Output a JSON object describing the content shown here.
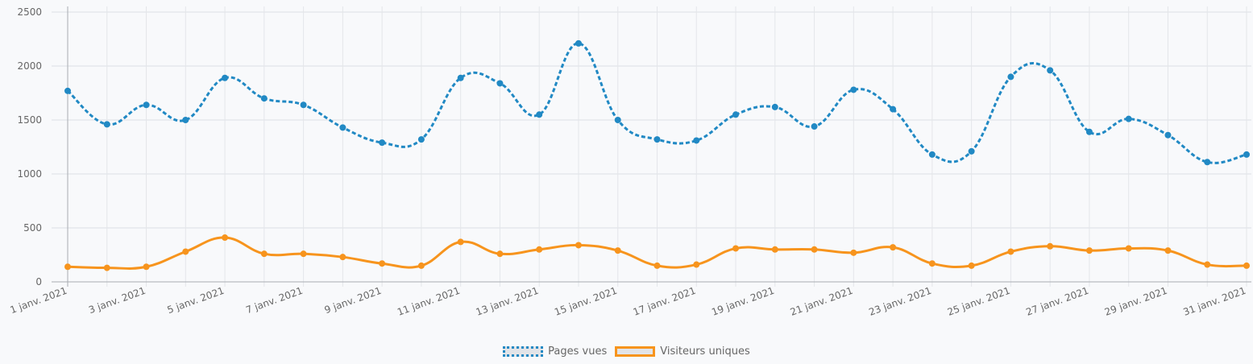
{
  "chart_data": {
    "type": "line",
    "title": "",
    "xlabel": "",
    "ylabel": "",
    "ylim": [
      0,
      2500
    ],
    "y_ticks": [
      0,
      500,
      1000,
      1500,
      2000,
      2500
    ],
    "grid": true,
    "legend_position": "bottom-center",
    "categories": [
      "1 janv. 2021",
      "2 janv. 2021",
      "3 janv. 2021",
      "4 janv. 2021",
      "5 janv. 2021",
      "6 janv. 2021",
      "7 janv. 2021",
      "8 janv. 2021",
      "9 janv. 2021",
      "10 janv. 2021",
      "11 janv. 2021",
      "12 janv. 2021",
      "13 janv. 2021",
      "14 janv. 2021",
      "15 janv. 2021",
      "16 janv. 2021",
      "17 janv. 2021",
      "18 janv. 2021",
      "19 janv. 2021",
      "20 janv. 2021",
      "21 janv. 2021",
      "22 janv. 2021",
      "23 janv. 2021",
      "24 janv. 2021",
      "25 janv. 2021",
      "26 janv. 2021",
      "27 janv. 2021",
      "28 janv. 2021",
      "29 janv. 2021",
      "30 janv. 2021",
      "31 janv. 2021"
    ],
    "x_tick_labels": [
      "1 janv. 2021",
      "3 janv. 2021",
      "5 janv. 2021",
      "7 janv. 2021",
      "9 janv. 2021",
      "11 janv. 2021",
      "13 janv. 2021",
      "15 janv. 2021",
      "17 janv. 2021",
      "19 janv. 2021",
      "21 janv. 2021",
      "23 janv. 2021",
      "25 janv. 2021",
      "27 janv. 2021",
      "29 janv. 2021",
      "31 janv. 2021"
    ],
    "series": [
      {
        "name": "Pages vues",
        "color": "#2189c4",
        "line_style": "dotted",
        "values": [
          1770,
          1460,
          1640,
          1500,
          1890,
          1700,
          1640,
          1430,
          1290,
          1320,
          1890,
          1840,
          1550,
          2210,
          1500,
          1320,
          1310,
          1550,
          1620,
          1440,
          1780,
          1600,
          1180,
          1210,
          1900,
          1960,
          1390,
          1510,
          1360,
          1110,
          1180
        ]
      },
      {
        "name": "Visiteurs uniques",
        "color": "#f7941d",
        "line_style": "solid",
        "values": [
          140,
          130,
          140,
          280,
          410,
          260,
          260,
          230,
          170,
          150,
          370,
          260,
          300,
          340,
          290,
          150,
          160,
          310,
          300,
          300,
          270,
          320,
          170,
          150,
          280,
          330,
          290,
          310,
          290,
          160,
          150
        ]
      }
    ]
  }
}
